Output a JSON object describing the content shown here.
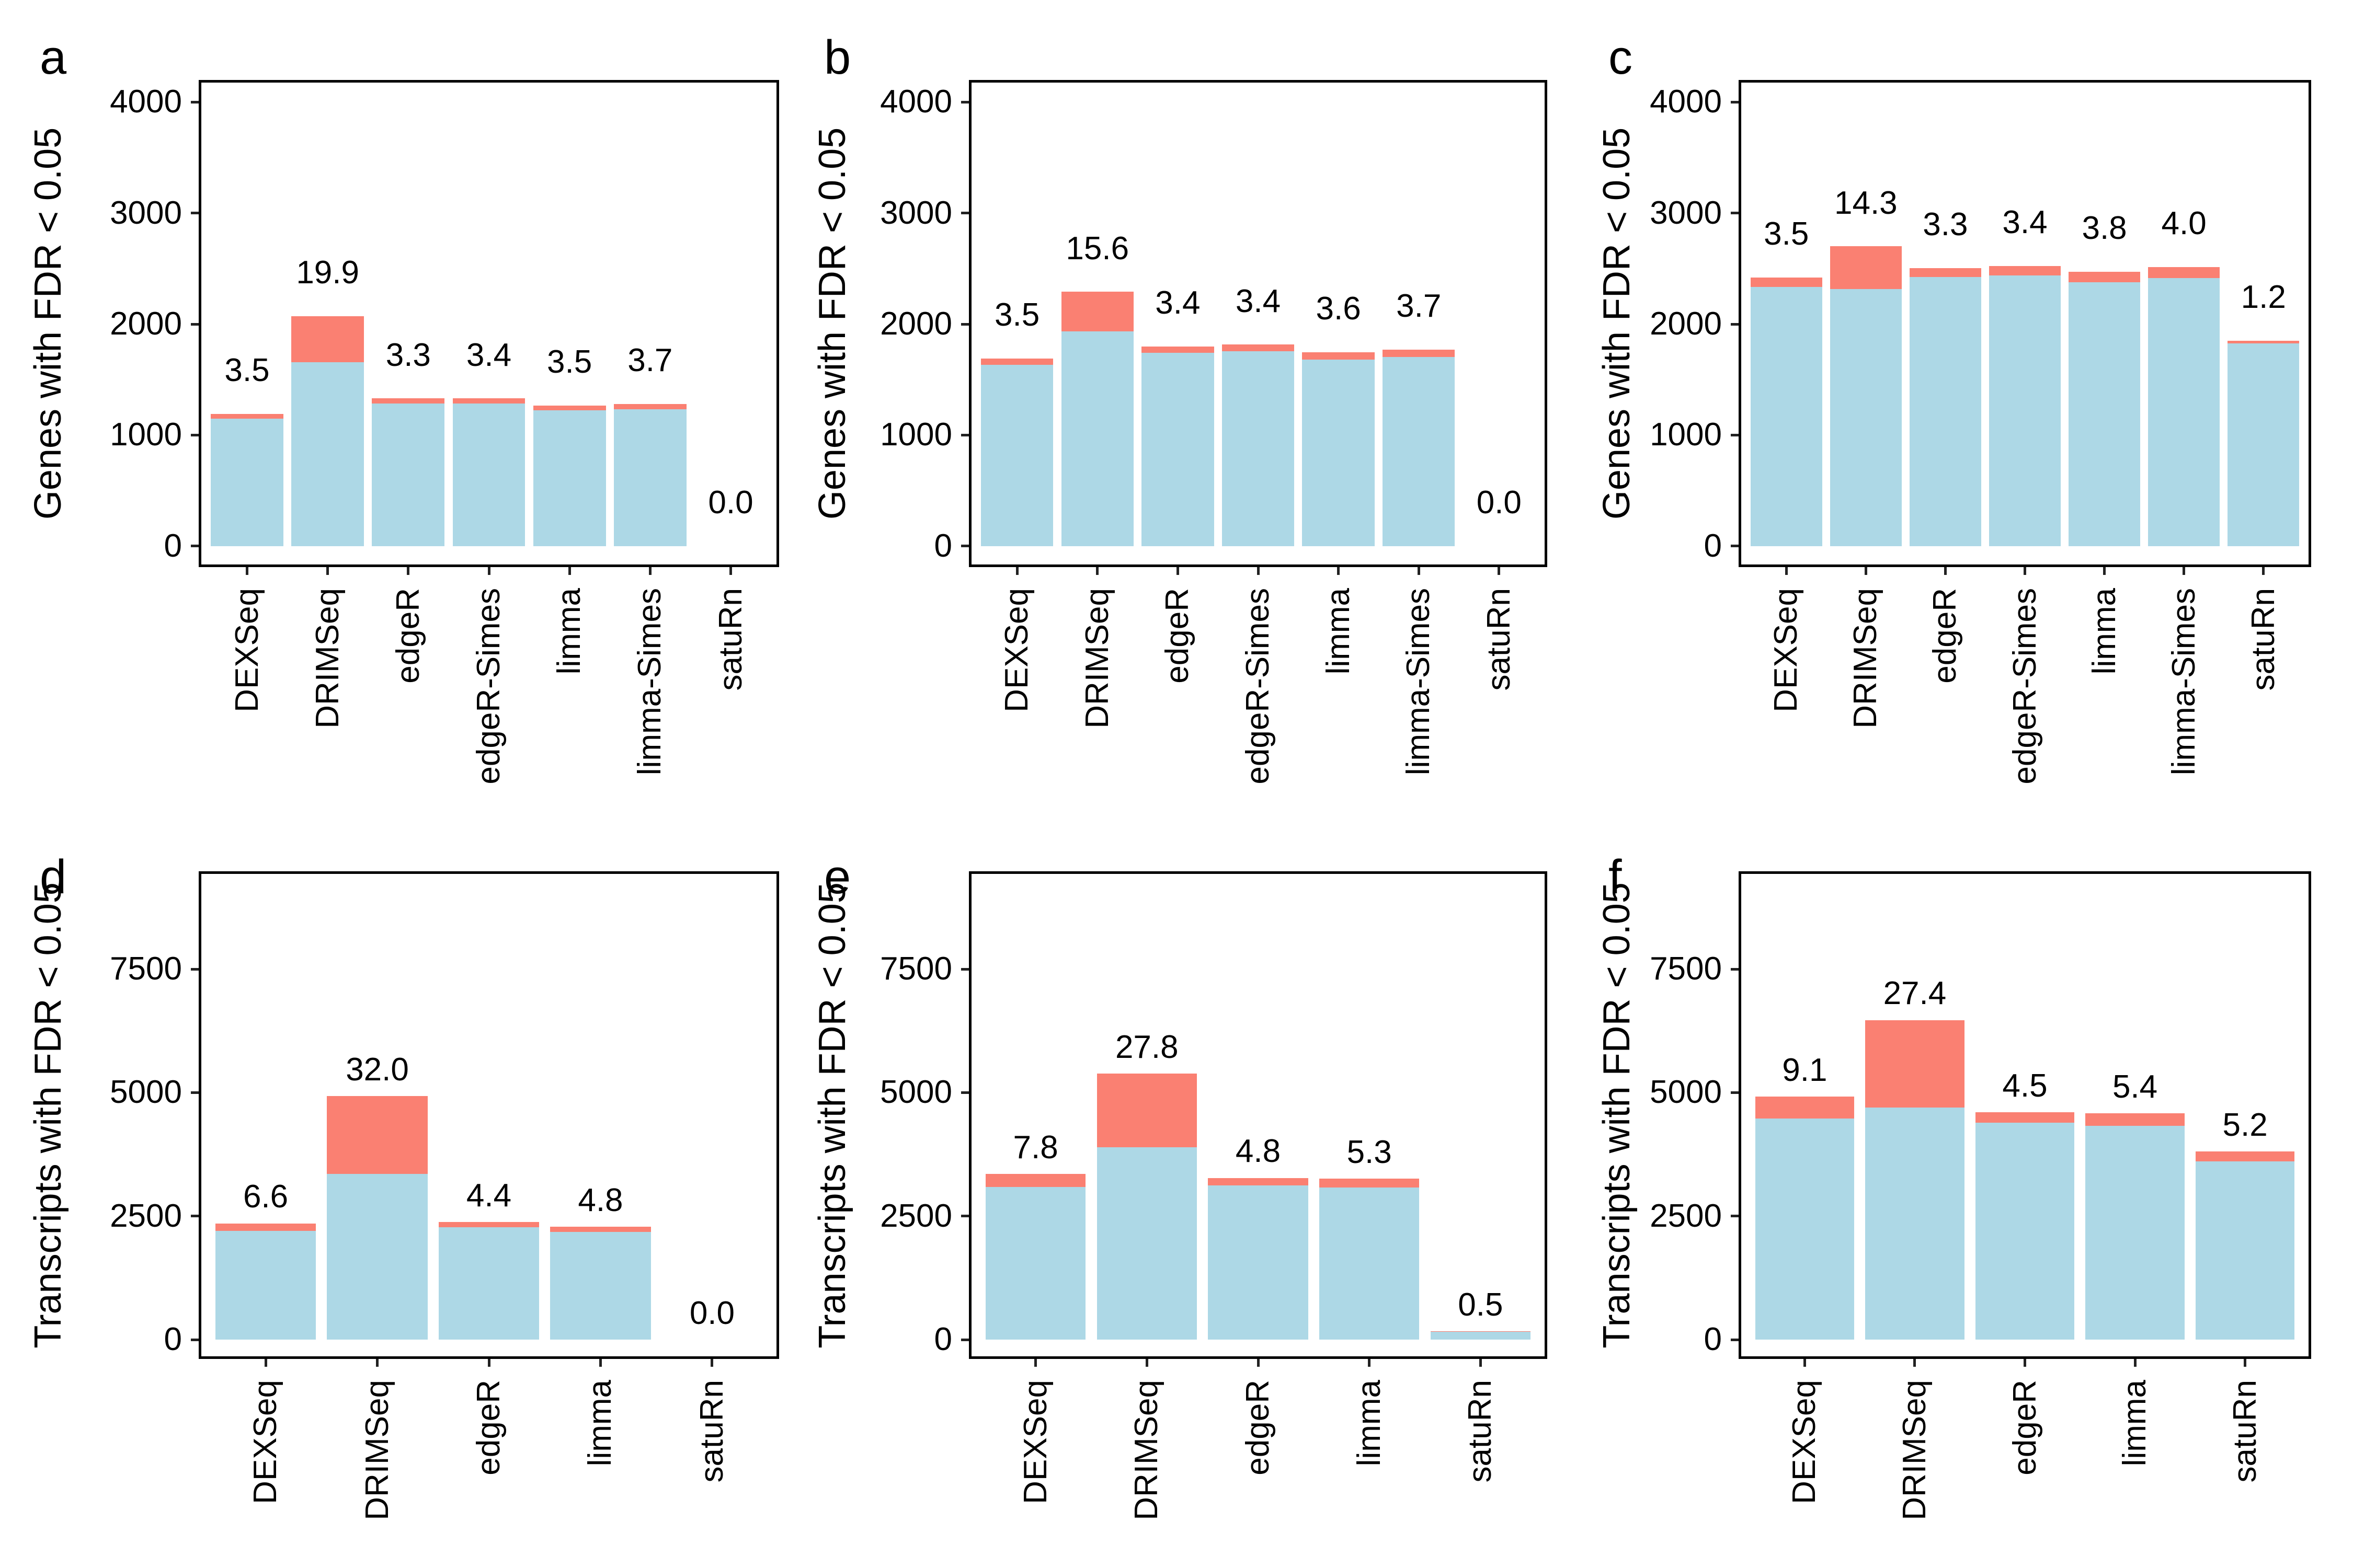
{
  "colors": {
    "primary_fill": "#ADD8E6",
    "top_fill": "#FA8072",
    "axis": "#000000",
    "tick": "#222222",
    "background": "#FFFFFF"
  },
  "chart_data": [
    {
      "panel": "a",
      "type": "bar",
      "stacked": true,
      "title": "",
      "xlabel": "",
      "ylabel": "Genes with FDR < 0.05",
      "categories": [
        "DEXSeq",
        "DRIMSeq",
        "edgeR",
        "edgeR-Simes",
        "limma",
        "limma-Simes",
        "satuRn"
      ],
      "series": [
        {
          "name": "primary",
          "color": "#ADD8E6",
          "values": [
            1148,
            1658,
            1286,
            1285,
            1221,
            1233,
            0
          ]
        },
        {
          "name": "top",
          "color": "#FA8072",
          "values": [
            42,
            412,
            44,
            45,
            44,
            47,
            0
          ]
        }
      ],
      "totals": [
        1190,
        2070,
        1330,
        1330,
        1265,
        1280,
        0
      ],
      "bar_labels": [
        "3.5",
        "19.9",
        "3.3",
        "3.4",
        "3.5",
        "3.7",
        "0.0"
      ],
      "yticks": [
        0,
        1000,
        2000,
        3000,
        4000
      ],
      "ylim": [
        0,
        4200
      ],
      "grid": false,
      "legend": "none"
    },
    {
      "panel": "b",
      "type": "bar",
      "stacked": true,
      "title": "",
      "xlabel": "",
      "ylabel": "Genes with FDR < 0.05",
      "categories": [
        "DEXSeq",
        "DRIMSeq",
        "edgeR",
        "edgeR-Simes",
        "limma",
        "limma-Simes",
        "satuRn"
      ],
      "series": [
        {
          "name": "primary",
          "color": "#ADD8E6",
          "values": [
            1631,
            1933,
            1739,
            1753,
            1682,
            1705,
            0
          ]
        },
        {
          "name": "top",
          "color": "#FA8072",
          "values": [
            59,
            357,
            61,
            62,
            63,
            65,
            0
          ]
        }
      ],
      "totals": [
        1690,
        2290,
        1800,
        1815,
        1745,
        1770,
        0
      ],
      "bar_labels": [
        "3.5",
        "15.6",
        "3.4",
        "3.4",
        "3.6",
        "3.7",
        "0.0"
      ],
      "yticks": [
        0,
        1000,
        2000,
        3000,
        4000
      ],
      "ylim": [
        0,
        4200
      ],
      "grid": false,
      "legend": "none"
    },
    {
      "panel": "c",
      "type": "bar",
      "stacked": true,
      "title": "",
      "xlabel": "",
      "ylabel": "Genes with FDR < 0.05",
      "categories": [
        "DEXSeq",
        "DRIMSeq",
        "edgeR",
        "edgeR-Simes",
        "limma",
        "limma-Simes",
        "satuRn"
      ],
      "series": [
        {
          "name": "primary",
          "color": "#ADD8E6",
          "values": [
            2335,
            2314,
            2422,
            2439,
            2376,
            2414,
            1828
          ]
        },
        {
          "name": "top",
          "color": "#FA8072",
          "values": [
            85,
            386,
            83,
            86,
            94,
            101,
            22
          ]
        }
      ],
      "totals": [
        2420,
        2700,
        2505,
        2525,
        2470,
        2515,
        1850
      ],
      "bar_labels": [
        "3.5",
        "14.3",
        "3.3",
        "3.4",
        "3.8",
        "4.0",
        "1.2"
      ],
      "yticks": [
        0,
        1000,
        2000,
        3000,
        4000
      ],
      "ylim": [
        0,
        4200
      ],
      "grid": false,
      "legend": "none"
    },
    {
      "panel": "d",
      "type": "bar",
      "stacked": true,
      "title": "",
      "xlabel": "",
      "ylabel": "Transcripts with FDR < 0.05",
      "categories": [
        "DEXSeq",
        "DRIMSeq",
        "edgeR",
        "limma",
        "satuRn"
      ],
      "series": [
        {
          "name": "primary",
          "color": "#ADD8E6",
          "values": [
            2200,
            3352,
            2275,
            2180,
            0
          ]
        },
        {
          "name": "top",
          "color": "#FA8072",
          "values": [
            155,
            1578,
            105,
            110,
            0
          ]
        }
      ],
      "totals": [
        2355,
        4930,
        2380,
        2290,
        0
      ],
      "bar_labels": [
        "6.6",
        "32.0",
        "4.4",
        "4.8",
        "0.0"
      ],
      "yticks": [
        0,
        2500,
        5000,
        7500
      ],
      "ylim": [
        0,
        9480
      ],
      "grid": false,
      "legend": "none"
    },
    {
      "panel": "e",
      "type": "bar",
      "stacked": true,
      "title": "",
      "xlabel": "",
      "ylabel": "Transcripts with FDR < 0.05",
      "categories": [
        "DEXSeq",
        "DRIMSeq",
        "edgeR",
        "limma",
        "satuRn"
      ],
      "series": [
        {
          "name": "primary",
          "color": "#ADD8E6",
          "values": [
            3089,
            3892,
            3118,
            3082,
            169
          ]
        },
        {
          "name": "top",
          "color": "#FA8072",
          "values": [
            261,
            1498,
            157,
            173,
            1
          ]
        }
      ],
      "totals": [
        3350,
        5390,
        3275,
        3255,
        170
      ],
      "bar_labels": [
        "7.8",
        "27.8",
        "4.8",
        "5.3",
        "0.5"
      ],
      "yticks": [
        0,
        2500,
        5000,
        7500
      ],
      "ylim": [
        0,
        9480
      ],
      "grid": false,
      "legend": "none"
    },
    {
      "panel": "f",
      "type": "bar",
      "stacked": true,
      "title": "",
      "xlabel": "",
      "ylabel": "Transcripts with FDR < 0.05",
      "categories": [
        "DEXSeq",
        "DRIMSeq",
        "edgeR",
        "limma",
        "satuRn"
      ],
      "series": [
        {
          "name": "primary",
          "color": "#ADD8E6",
          "values": [
            4472,
            4697,
            4393,
            4333,
            3612
          ]
        },
        {
          "name": "top",
          "color": "#FA8072",
          "values": [
            448,
            1773,
            207,
            247,
            198
          ]
        }
      ],
      "totals": [
        4920,
        6470,
        4600,
        4580,
        3810
      ],
      "bar_labels": [
        "9.1",
        "27.4",
        "4.5",
        "5.4",
        "5.2"
      ],
      "yticks": [
        0,
        2500,
        5000,
        7500
      ],
      "ylim": [
        0,
        9480
      ],
      "grid": false,
      "legend": "none"
    }
  ]
}
